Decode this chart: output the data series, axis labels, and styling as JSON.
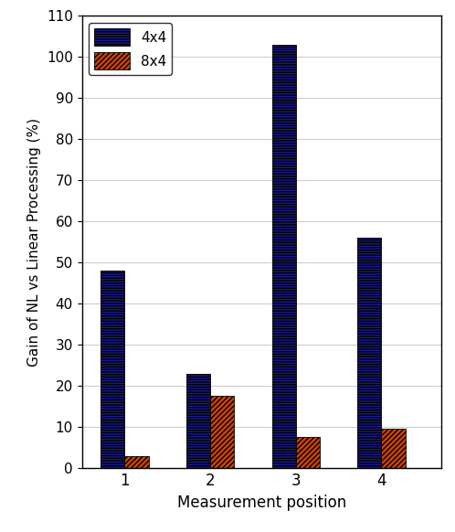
{
  "categories": [
    1,
    2,
    3,
    4
  ],
  "values_4x4": [
    48,
    23,
    103,
    56
  ],
  "values_8x4": [
    3,
    17.5,
    7.5,
    9.5
  ],
  "bar_color_4x4": "#1a1a8c",
  "bar_color_8x4": "#cc4400",
  "xlabel": "Measurement position",
  "ylabel": "Gain of NL vs Linear Processing (%)",
  "ylim": [
    0,
    110
  ],
  "yticks": [
    0,
    10,
    20,
    30,
    40,
    50,
    60,
    70,
    80,
    90,
    100,
    110
  ],
  "legend_labels": [
    "4x4",
    "8x4"
  ],
  "bar_width": 0.28,
  "background_color": "#ffffff",
  "grid_color": "#cccccc",
  "figsize": [
    4.98,
    5.82
  ],
  "dpi": 100
}
